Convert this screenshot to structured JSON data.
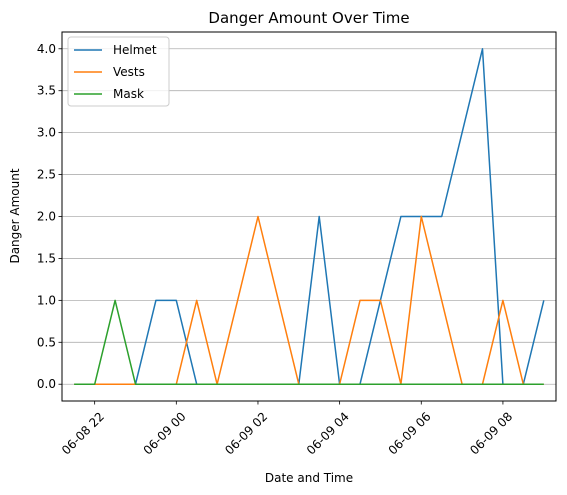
{
  "chart_data": {
    "type": "line",
    "title": "Danger Amount Over Time",
    "xlabel": "Date and Time",
    "ylabel": "Danger Amount",
    "x": [
      "06-08 21:30",
      "06-08 22:00",
      "06-08 22:30",
      "06-08 23:00",
      "06-08 23:30",
      "06-09 00:00",
      "06-09 00:30",
      "06-09 01:00",
      "06-09 01:30",
      "06-09 02:00",
      "06-09 02:30",
      "06-09 03:00",
      "06-09 03:30",
      "06-09 04:00",
      "06-09 04:30",
      "06-09 05:00",
      "06-09 05:30",
      "06-09 06:00",
      "06-09 06:30",
      "06-09 07:00",
      "06-09 07:30",
      "06-09 08:00",
      "06-09 08:30",
      "06-09 09:00"
    ],
    "x_hours_offset": [
      -2.5,
      -2,
      -1.5,
      -1,
      -0.5,
      0,
      0.5,
      1,
      1.5,
      2,
      2.5,
      3,
      3.5,
      4,
      4.5,
      5,
      5.5,
      6,
      6.5,
      7,
      7.5,
      8,
      8.5,
      9
    ],
    "xticks": [
      "06-08 22",
      "06-09 00",
      "06-09 02",
      "06-09 04",
      "06-09 06",
      "06-09 08"
    ],
    "xtick_hours": [
      -2,
      0,
      2,
      4,
      6,
      8
    ],
    "xlim_hours": [
      -2.8,
      9.3
    ],
    "yticks": [
      "0.0",
      "0.5",
      "1.0",
      "1.5",
      "2.0",
      "2.5",
      "3.0",
      "3.5",
      "4.0"
    ],
    "ylim": [
      -0.2,
      4.2
    ],
    "grid": "y",
    "legend": "upper-left",
    "series": [
      {
        "name": "Helmet",
        "color": "#1f77b4",
        "values": [
          0,
          0,
          0,
          0,
          1,
          1,
          0,
          0,
          0,
          0,
          0,
          0,
          2,
          0,
          0,
          1,
          2,
          2,
          2,
          3,
          4,
          0,
          0,
          1
        ]
      },
      {
        "name": "Vests",
        "color": "#ff7f0e",
        "values": [
          0,
          0,
          0,
          0,
          0,
          0,
          1,
          0,
          1,
          2,
          1,
          0,
          0,
          0,
          1,
          1,
          0,
          2,
          1,
          0,
          0,
          1,
          0,
          0
        ]
      },
      {
        "name": "Mask",
        "color": "#2ca02c",
        "values": [
          0,
          0,
          1,
          0,
          0,
          0,
          0,
          0,
          0,
          0,
          0,
          0,
          0,
          0,
          0,
          0,
          0,
          0,
          0,
          0,
          0,
          0,
          0,
          0
        ]
      }
    ]
  }
}
